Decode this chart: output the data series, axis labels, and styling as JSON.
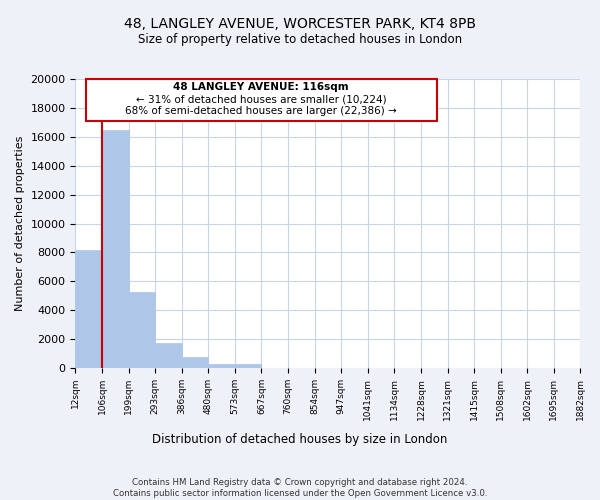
{
  "title_line1": "48, LANGLEY AVENUE, WORCESTER PARK, KT4 8PB",
  "title_line2": "Size of property relative to detached houses in London",
  "xlabel": "Distribution of detached houses by size in London",
  "ylabel": "Number of detached properties",
  "bar_values": [
    8200,
    16500,
    5300,
    1750,
    750,
    300,
    300,
    0,
    0,
    0,
    0,
    0,
    0,
    0,
    0,
    0,
    0,
    0,
    0
  ],
  "bin_labels": [
    "12sqm",
    "106sqm",
    "199sqm",
    "293sqm",
    "386sqm",
    "480sqm",
    "573sqm",
    "667sqm",
    "760sqm",
    "854sqm",
    "947sqm",
    "1041sqm",
    "1134sqm",
    "1228sqm",
    "1321sqm",
    "1415sqm",
    "1508sqm",
    "1602sqm",
    "1695sqm",
    "1882sqm"
  ],
  "bar_color": "#aec6e8",
  "bar_edge_color": "#aec6e8",
  "vline_color": "#cc0000",
  "annotation_text_line1": "48 LANGLEY AVENUE: 116sqm",
  "annotation_text_line2": "← 31% of detached houses are smaller (10,224)",
  "annotation_text_line3": "68% of semi-detached houses are larger (22,386) →",
  "ylim": [
    0,
    20000
  ],
  "yticks": [
    0,
    2000,
    4000,
    6000,
    8000,
    10000,
    12000,
    14000,
    16000,
    18000,
    20000
  ],
  "footer_line1": "Contains HM Land Registry data © Crown copyright and database right 2024.",
  "footer_line2": "Contains public sector information licensed under the Open Government Licence v3.0.",
  "bg_color": "#eef2f8",
  "plot_bg_color": "#ffffff",
  "grid_color": "#c8d4e8"
}
